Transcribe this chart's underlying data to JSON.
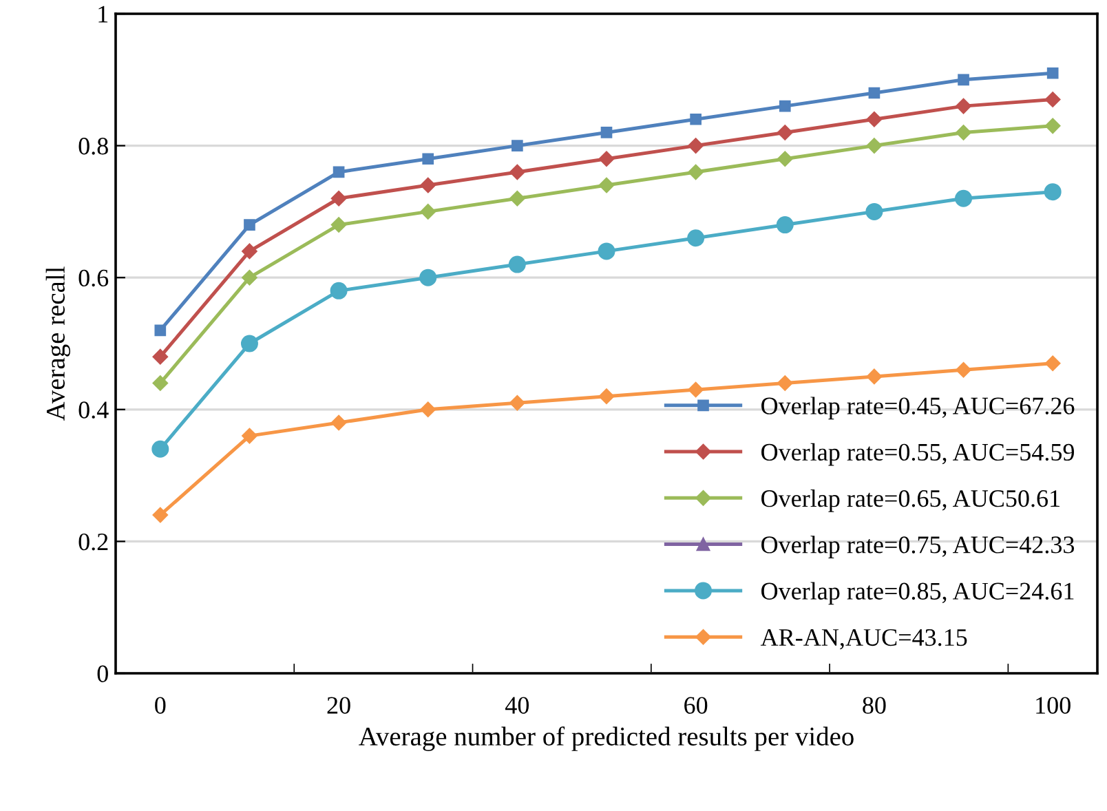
{
  "chart_data": {
    "type": "line",
    "xlabel": "Average number of predicted results per video",
    "ylabel": "Average recall",
    "categories": [
      "0",
      null,
      "20",
      null,
      "40",
      null,
      "60",
      null,
      "80",
      null,
      "100"
    ],
    "ylim": [
      0,
      1
    ],
    "yticks": [
      0,
      0.2,
      0.4,
      0.6,
      0.8,
      1
    ],
    "grid": "y",
    "legend": "bottom right",
    "series": [
      {
        "name": "Overlap rate=0.45, AUC=67.26",
        "color": "#4f81bd",
        "marker": "square",
        "values": [
          0.52,
          0.68,
          0.76,
          0.78,
          0.8,
          0.82,
          0.84,
          0.86,
          0.88,
          0.9,
          0.91
        ]
      },
      {
        "name": "Overlap rate=0.55, AUC=54.59",
        "color": "#c0504d",
        "marker": "diamond",
        "values": [
          0.48,
          0.64,
          0.72,
          0.74,
          0.76,
          0.78,
          0.8,
          0.82,
          0.84,
          0.86,
          0.87
        ]
      },
      {
        "name": "Overlap rate=0.65, AUC50.61",
        "color": "#9bbb59",
        "marker": "diamond",
        "values": [
          0.44,
          0.6,
          0.68,
          0.7,
          0.72,
          0.74,
          0.76,
          0.78,
          0.8,
          0.82,
          0.83
        ]
      },
      {
        "name": "Overlap rate=0.75, AUC=42.33",
        "color": "#8064a2",
        "marker": "triangle",
        "values": [
          null,
          null,
          null,
          null,
          null,
          null,
          null,
          null,
          null,
          null,
          null
        ]
      },
      {
        "name": "Overlap rate=0.85, AUC=24.61",
        "color": "#4bacc6",
        "marker": "circle",
        "values": [
          0.34,
          0.5,
          0.58,
          0.6,
          0.62,
          0.64,
          0.66,
          0.68,
          0.7,
          0.72,
          0.73
        ]
      },
      {
        "name": "AR-AN,AUC=43.15",
        "color": "#f79646",
        "marker": "diamond",
        "values": [
          0.24,
          0.36,
          0.38,
          0.4,
          0.41,
          0.42,
          0.43,
          0.44,
          0.45,
          0.46,
          0.47
        ]
      }
    ]
  }
}
